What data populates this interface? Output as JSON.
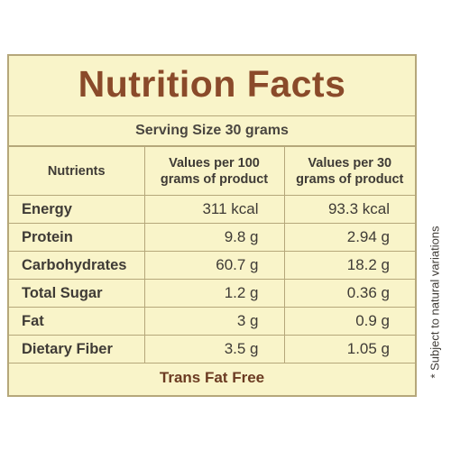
{
  "title": "Nutrition Facts",
  "serving_size": "Serving Size 30 grams",
  "table": {
    "header": [
      "Nutrients",
      "Values per 100 grams of product",
      "Values per 30 grams of product"
    ],
    "rows": [
      [
        "Energy",
        "311 kcal",
        "93.3 kcal"
      ],
      [
        "Protein",
        "9.8 g",
        "2.94 g"
      ],
      [
        "Carbohydrates",
        "60.7 g",
        "18.2 g"
      ],
      [
        "Total Sugar",
        "1.2 g",
        "0.36 g"
      ],
      [
        "Fat",
        "3 g",
        "0.9 g"
      ],
      [
        "Dietary Fiber",
        "3.5 g",
        "1.05 g"
      ]
    ]
  },
  "footer": "Trans Fat Free",
  "side_note": "* Subject to natural variations"
}
